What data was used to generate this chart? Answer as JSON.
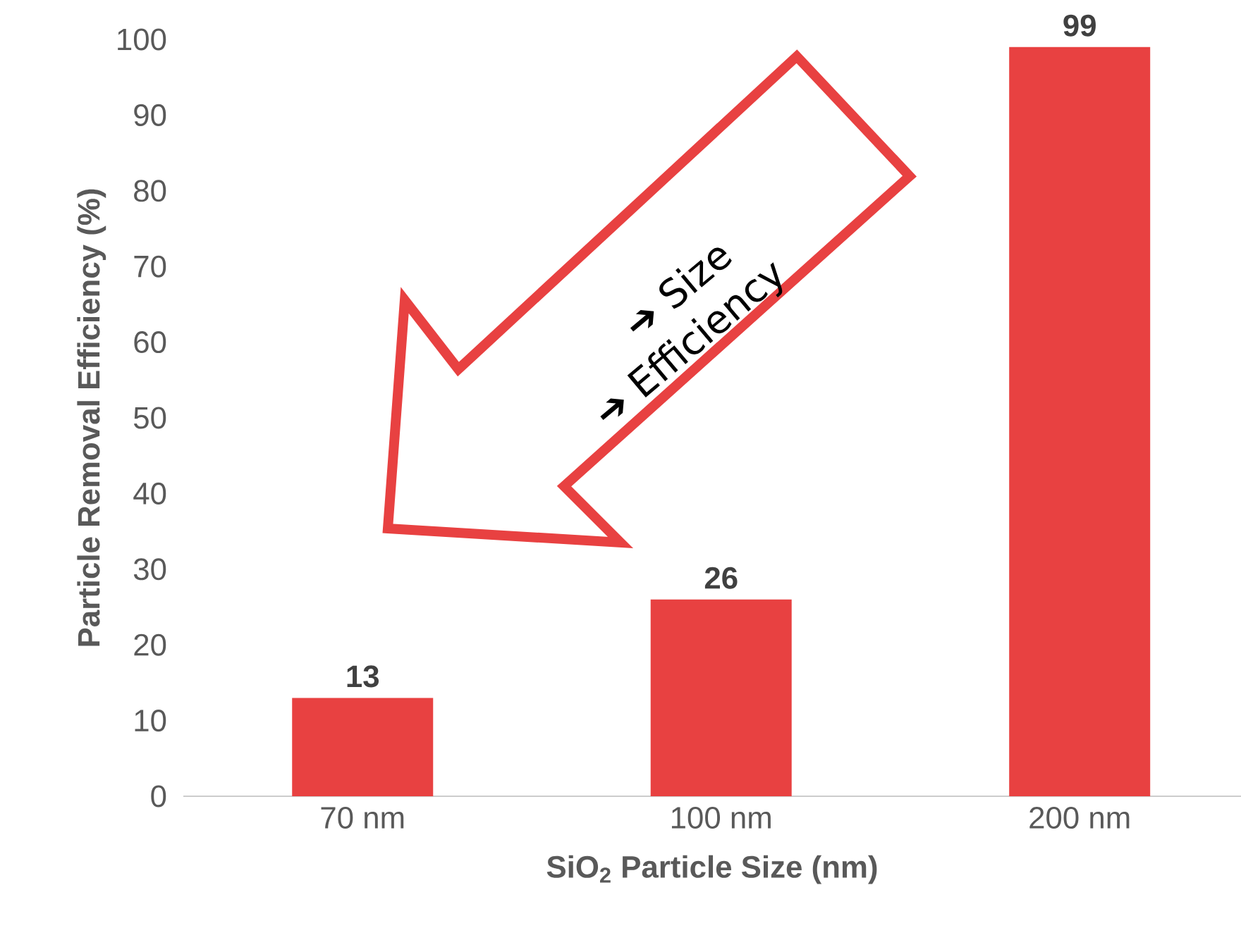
{
  "chart_data": {
    "type": "bar",
    "xlabel": "SiO$_{2}$ Particle Size (nm)",
    "ylabel": "Particle Removal Efficiency (%)",
    "categories": [
      "70 nm",
      "100 nm",
      "200 nm"
    ],
    "values": [
      13,
      26,
      99
    ],
    "color": "#e84141",
    "ylim": [
      0,
      100
    ],
    "yticks": [
      0,
      10,
      20,
      30,
      40,
      50,
      60,
      70,
      80,
      90,
      100
    ],
    "data_labels": true,
    "grid": false,
    "annotations": [
      "➔ Size",
      "➔ Efficiency"
    ]
  }
}
